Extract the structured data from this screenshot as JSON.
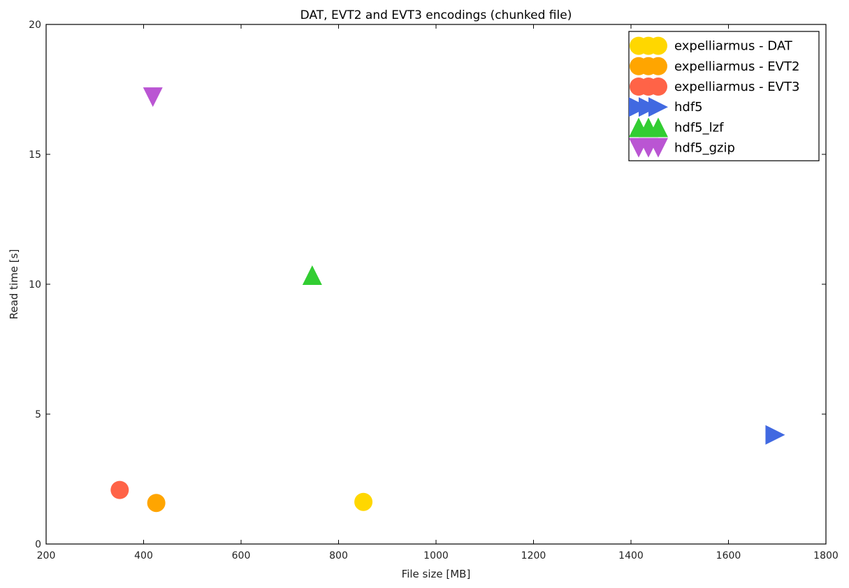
{
  "chart_data": {
    "type": "scatter",
    "title": "DAT, EVT2 and EVT3 encodings (chunked file)",
    "xlabel": "File size [MB]",
    "ylabel": "Read time [s]",
    "xlim": [
      200,
      1800
    ],
    "ylim": [
      0,
      20
    ],
    "xticks": [
      200,
      400,
      600,
      800,
      1000,
      1200,
      1400,
      1600,
      1800
    ],
    "yticks": [
      0,
      5,
      10,
      15,
      20
    ],
    "grid": false,
    "legend_position": "top-right",
    "series": [
      {
        "name": "expelliarmus - DAT",
        "marker": "circle",
        "color": "#FFD700",
        "points": [
          {
            "x": 851,
            "y": 1.62
          }
        ]
      },
      {
        "name": "expelliarmus - EVT2",
        "marker": "circle",
        "color": "#FFA500",
        "points": [
          {
            "x": 426,
            "y": 1.58
          }
        ]
      },
      {
        "name": "expelliarmus - EVT3",
        "marker": "circle",
        "color": "#FF6347",
        "points": [
          {
            "x": 351,
            "y": 2.08
          }
        ]
      },
      {
        "name": "hdf5",
        "marker": "triangle-right",
        "color": "#4169E1",
        "points": [
          {
            "x": 1696,
            "y": 4.2
          }
        ]
      },
      {
        "name": "hdf5_lzf",
        "marker": "triangle-up",
        "color": "#32CD32",
        "points": [
          {
            "x": 746,
            "y": 10.35
          }
        ]
      },
      {
        "name": "hdf5_gzip",
        "marker": "triangle-down",
        "color": "#BA55D3",
        "points": [
          {
            "x": 419,
            "y": 17.2
          }
        ]
      }
    ]
  }
}
